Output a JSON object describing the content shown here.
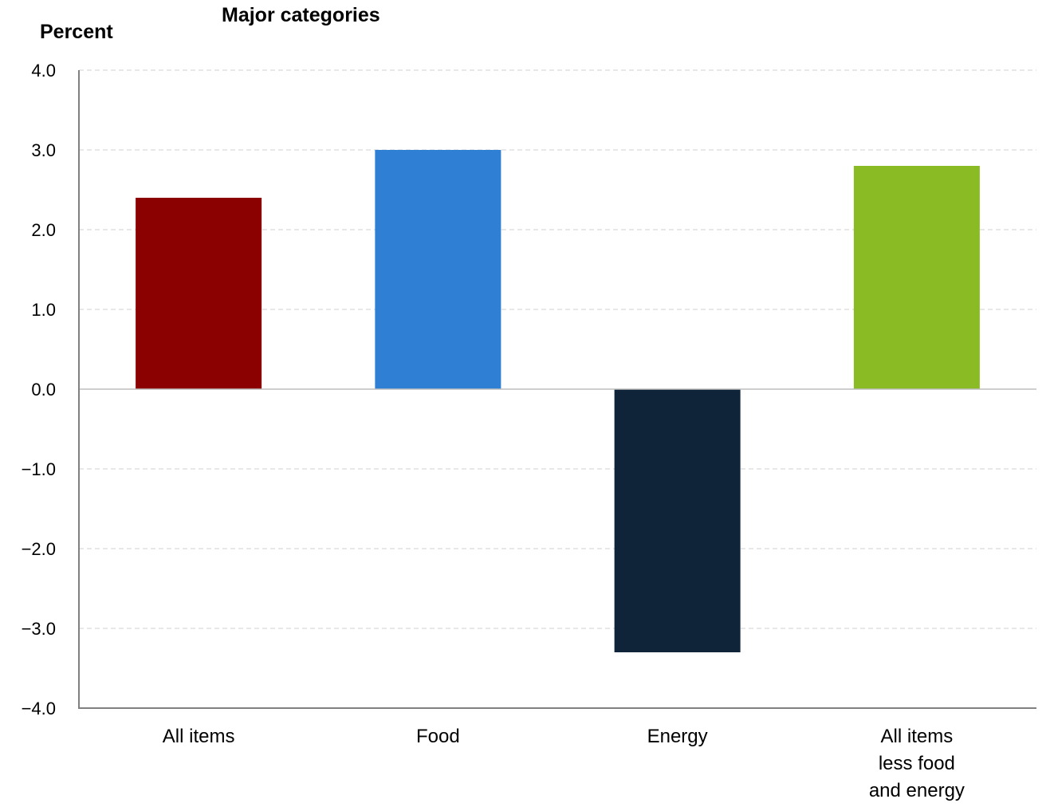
{
  "chart_data": {
    "type": "bar",
    "title": "Major categories",
    "ylabel": "Percent",
    "xlabel": "",
    "ylim": [
      -4.0,
      4.0
    ],
    "yticks": [
      "4.0",
      "3.0",
      "2.0",
      "1.0",
      "0.0",
      "−1.0",
      "−2.0",
      "−3.0",
      "−4.0"
    ],
    "ytick_values": [
      4,
      3,
      2,
      1,
      0,
      -1,
      -2,
      -3,
      -4
    ],
    "grid": true,
    "categories": [
      [
        "All items"
      ],
      [
        "Food"
      ],
      [
        "Energy"
      ],
      [
        "All items",
        "less food",
        "and energy"
      ]
    ],
    "values": [
      2.4,
      3.0,
      -3.3,
      2.8
    ],
    "colors": [
      "#8b0000",
      "#2f80d5",
      "#0f2438",
      "#8aba24"
    ]
  }
}
